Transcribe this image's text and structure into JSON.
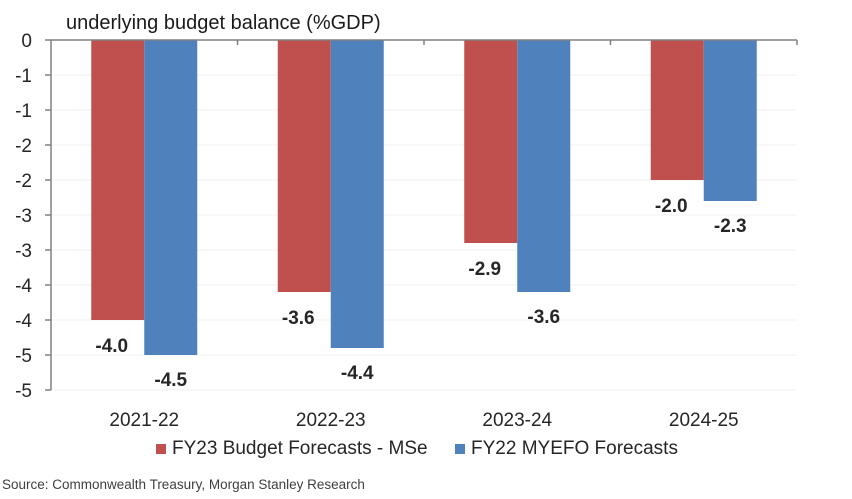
{
  "chart_data": {
    "type": "bar",
    "title": "underlying budget balance (%GDP)",
    "xlabel": "",
    "ylabel": "",
    "categories": [
      "2021-22",
      "2022-23",
      "2023-24",
      "2024-25"
    ],
    "series": [
      {
        "name": "FY23 Budget Forecasts - MSe",
        "color": "#C0504D",
        "values": [
          -4.0,
          -3.6,
          -2.9,
          -2.0
        ]
      },
      {
        "name": "FY22 MYEFO Forecasts",
        "color": "#4F81BD",
        "values": [
          -4.5,
          -4.4,
          -3.6,
          -2.3
        ]
      }
    ],
    "data_labels": [
      [
        "-4.0",
        "-3.6",
        "-2.9",
        "-2.0"
      ],
      [
        "-4.5",
        "-4.4",
        "-3.6",
        "-2.3"
      ]
    ],
    "ylim": [
      -5,
      0
    ],
    "yticks": [
      0,
      -0.5,
      -1,
      -1.5,
      -2,
      -2.5,
      -3,
      -3.5,
      -4,
      -4.5,
      -5
    ],
    "ytick_labels": [
      "0",
      "-1",
      "-1",
      "-2",
      "-2",
      "-3",
      "-3",
      "-4",
      "-4",
      "-5",
      "-5"
    ],
    "grid": true,
    "legend_position": "bottom"
  },
  "source": "Source: Commonwealth Treasury, Morgan Stanley Research"
}
